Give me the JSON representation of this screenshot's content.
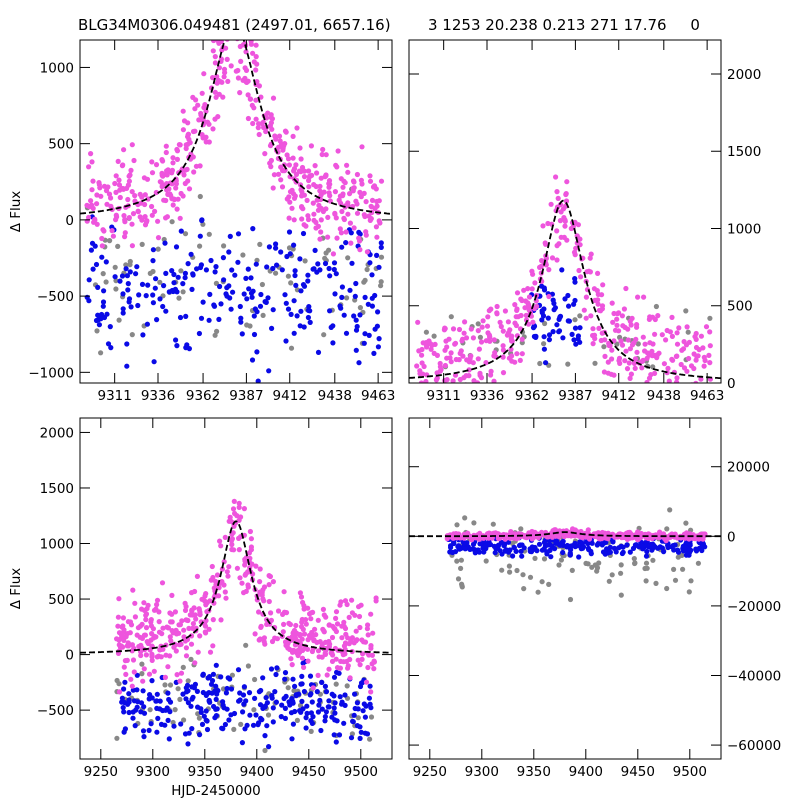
{
  "title_left": "BLG34M0306.049481 (2497.01, 6657.16)",
  "title_right": "3 1253 20.238 0.213 271 17.76     0",
  "colors": {
    "pink": "#ee55dd",
    "blue": "#0a0ae6",
    "gray": "#888888",
    "model": "#000000"
  },
  "chart_data": [
    {
      "name": "top-left",
      "type": "scatter",
      "xlabel": "",
      "ylabel": "Δ Flux",
      "xlim": [
        9291,
        9471
      ],
      "ylim": [
        -1070,
        1180
      ],
      "xticks": [
        9311,
        9336,
        9362,
        9387,
        9412,
        9438,
        9463
      ],
      "yticks": [
        -1000,
        -500,
        0,
        500,
        1000
      ],
      "ytick_side": "left",
      "model": {
        "t0": 9380,
        "width": 18,
        "peak": 1300,
        "base": -10
      },
      "series": [
        {
          "name": "gray",
          "x_center": 9380,
          "x_spread": 170,
          "y_mean": -350,
          "y_spread": 1500,
          "n": 90
        },
        {
          "name": "blue",
          "x_center": 9380,
          "x_spread": 170,
          "y_mean": -450,
          "y_spread": 1300,
          "n": 260
        },
        {
          "name": "pink",
          "x_center": 9380,
          "x_spread": 170,
          "y_mean": 150,
          "y_spread": 900,
          "n": 520
        }
      ]
    },
    {
      "name": "top-right",
      "type": "scatter",
      "xlabel": "",
      "ylabel": "",
      "xlim": [
        9291,
        9471
      ],
      "ylim": [
        0,
        2220
      ],
      "xticks": [
        9311,
        9336,
        9362,
        9387,
        9412,
        9438,
        9463
      ],
      "yticks": [
        0,
        500,
        1000,
        1500,
        2000
      ],
      "ytick_side": "right",
      "model": {
        "t0": 9380,
        "width": 15,
        "peak": 1180,
        "base": 0
      },
      "series": [
        {
          "name": "gray",
          "x_center": 9380,
          "x_spread": 170,
          "y_mean": 250,
          "y_spread": 700,
          "n": 40
        },
        {
          "name": "blue",
          "x_center": 9375,
          "x_spread": 30,
          "y_mean": 450,
          "y_spread": 700,
          "n": 60
        },
        {
          "name": "pink",
          "x_center": 9380,
          "x_spread": 170,
          "y_mean": 300,
          "y_spread": 800,
          "n": 420
        }
      ]
    },
    {
      "name": "bottom-left",
      "type": "scatter",
      "xlabel": "HJD-2450000",
      "ylabel": "Δ Flux",
      "xlim": [
        9230,
        9530
      ],
      "ylim": [
        -940,
        2130
      ],
      "xticks": [
        9250,
        9300,
        9350,
        9400,
        9450,
        9500
      ],
      "yticks": [
        -500,
        0,
        500,
        1000,
        1500,
        2000
      ],
      "ytick_side": "left",
      "model": {
        "t0": 9380,
        "width": 18,
        "peak": 1200,
        "base": 0
      },
      "series": [
        {
          "name": "gray",
          "x_center": 9390,
          "x_spread": 250,
          "y_mean": -400,
          "y_spread": 1100,
          "n": 90
        },
        {
          "name": "blue",
          "x_center": 9390,
          "x_spread": 240,
          "y_mean": -450,
          "y_spread": 1000,
          "n": 280
        },
        {
          "name": "pink",
          "x_center": 9390,
          "x_spread": 250,
          "y_mean": 250,
          "y_spread": 1100,
          "n": 520
        }
      ]
    },
    {
      "name": "bottom-right",
      "type": "scatter",
      "xlabel": "",
      "ylabel": "",
      "xlim": [
        9230,
        9530
      ],
      "ylim": [
        -64000,
        34000
      ],
      "xticks": [
        9250,
        9300,
        9350,
        9400,
        9450,
        9500
      ],
      "yticks": [
        -60000,
        -40000,
        -20000,
        0,
        20000
      ],
      "ytick_side": "right",
      "model": {
        "t0": 9380,
        "width": 18,
        "peak": 1200,
        "base": 0
      },
      "series": [
        {
          "name": "gray",
          "x_center": 9390,
          "x_spread": 250,
          "y_mean": -6000,
          "y_spread": 30000,
          "n": 110
        },
        {
          "name": "blue",
          "x_center": 9390,
          "x_spread": 250,
          "y_mean": -3000,
          "y_spread": 7000,
          "n": 250
        },
        {
          "name": "pink",
          "x_center": 9390,
          "x_spread": 250,
          "y_mean": 0,
          "y_spread": 3000,
          "n": 420
        }
      ]
    }
  ]
}
